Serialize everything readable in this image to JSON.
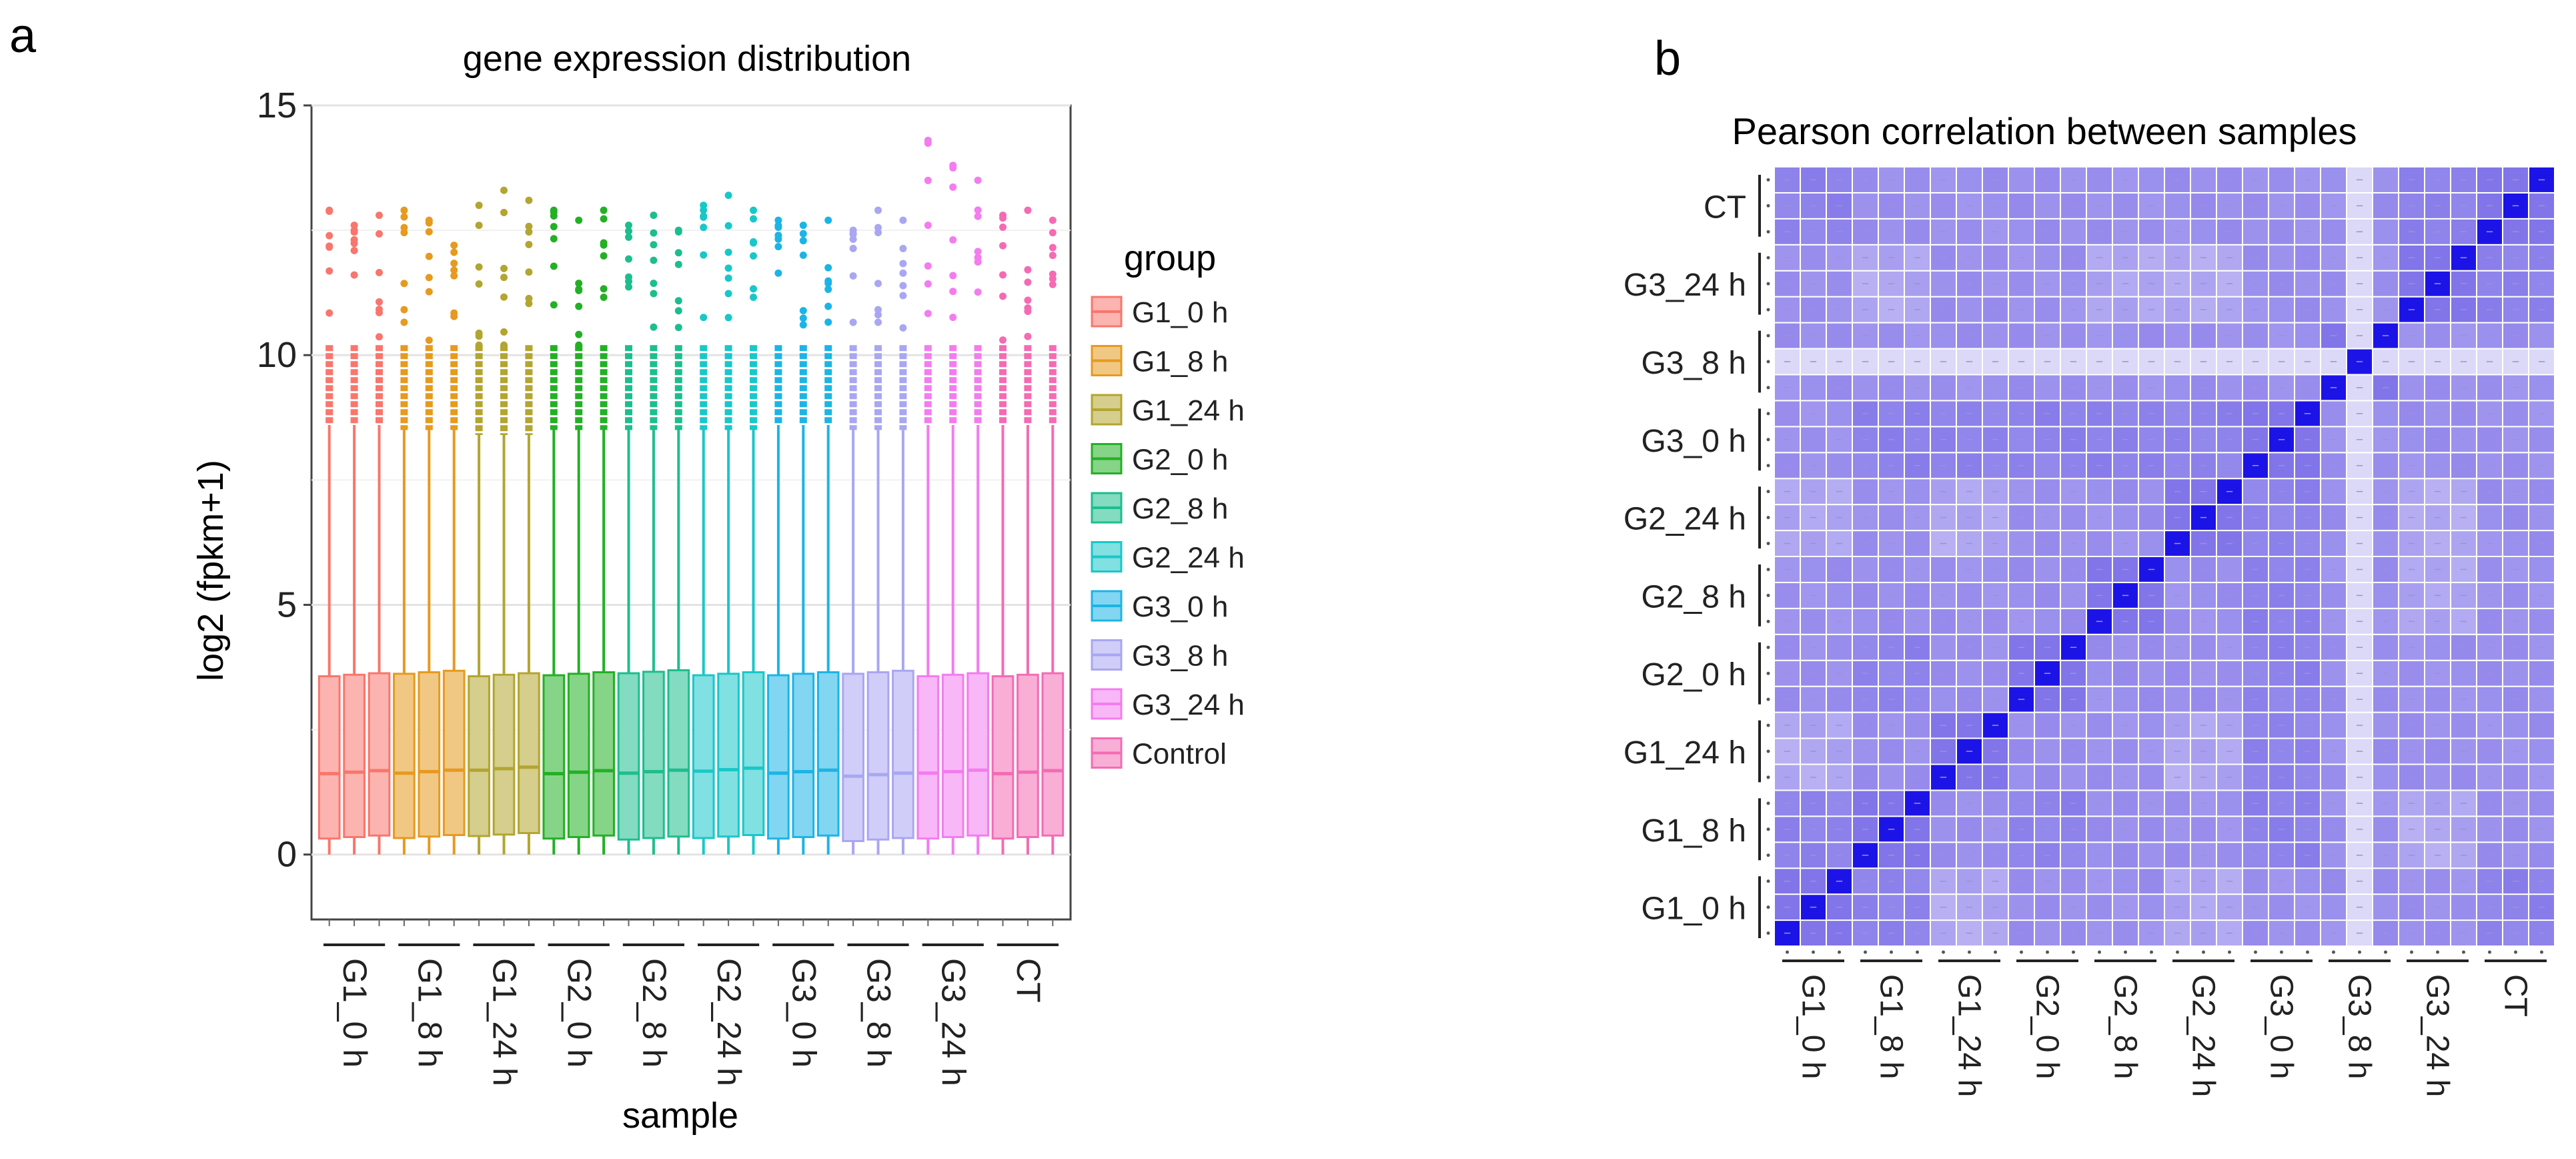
{
  "panel_a": {
    "letter": "a"
  },
  "panel_b": {
    "letter": "b"
  },
  "chart_data": [
    {
      "type": "box",
      "title": "gene expression  distribution",
      "xlabel": "sample",
      "ylabel": "log2 (fpkm+1)",
      "ylim": [
        -1.3,
        15.0
      ],
      "yticks": [
        0,
        5,
        10,
        15
      ],
      "grid": true,
      "legend_title": "group",
      "legend_position": "right",
      "groups": [
        {
          "name": "G1_0 h",
          "label": "G1_0 h",
          "color": "#F8766D",
          "median": 1.65,
          "q1": 0.35,
          "q3": 3.6,
          "whisker_low": 0.0,
          "whisker_high": 8.6,
          "outlier_max": [
            12.9,
            12.6,
            12.8
          ]
        },
        {
          "name": "G1_8 h",
          "label": "G1_8 h",
          "color": "#E69A1F",
          "median": 1.66,
          "q1": 0.36,
          "q3": 3.65,
          "whisker_low": 0.0,
          "whisker_high": 8.5,
          "outlier_max": [
            12.9,
            12.7,
            12.2
          ]
        },
        {
          "name": "G1_24 h",
          "label": "G1_24 h",
          "color": "#B3A530",
          "median": 1.72,
          "q1": 0.4,
          "q3": 3.6,
          "whisker_low": 0.0,
          "whisker_high": 8.4,
          "outlier_max": [
            13.0,
            13.3,
            13.1
          ]
        },
        {
          "name": "G2_0 h",
          "label": "G2_0 h",
          "color": "#23B025",
          "median": 1.65,
          "q1": 0.35,
          "q3": 3.62,
          "whisker_low": 0.0,
          "whisker_high": 8.5,
          "outlier_max": [
            12.9,
            12.7,
            12.9
          ]
        },
        {
          "name": "G2_8 h",
          "label": "G2_8 h",
          "color": "#1DBE8D",
          "median": 1.66,
          "q1": 0.33,
          "q3": 3.66,
          "whisker_low": 0.0,
          "whisker_high": 8.5,
          "outlier_max": [
            12.6,
            12.8,
            12.5
          ]
        },
        {
          "name": "G2_24 h",
          "label": "G2_24 h",
          "color": "#19C7C9",
          "median": 1.7,
          "q1": 0.36,
          "q3": 3.62,
          "whisker_low": 0.0,
          "whisker_high": 8.5,
          "outlier_max": [
            13.0,
            13.2,
            12.9
          ]
        },
        {
          "name": "G3_0 h",
          "label": "G3_0 h",
          "color": "#1CB4E6",
          "median": 1.66,
          "q1": 0.35,
          "q3": 3.62,
          "whisker_low": 0.0,
          "whisker_high": 8.6,
          "outlier_max": [
            12.7,
            12.6,
            12.7
          ]
        },
        {
          "name": "G3_8 h",
          "label": "G3_8 h",
          "color": "#A9A6F2",
          "median": 1.6,
          "q1": 0.3,
          "q3": 3.65,
          "whisker_low": 0.0,
          "whisker_high": 8.5,
          "outlier_max": [
            12.5,
            12.9,
            12.7
          ]
        },
        {
          "name": "G3_24 h",
          "label": "G3_24 h",
          "color": "#F37CEE",
          "median": 1.66,
          "q1": 0.35,
          "q3": 3.6,
          "whisker_low": 0.0,
          "whisker_high": 8.6,
          "outlier_max": [
            14.3,
            13.8,
            13.5
          ]
        },
        {
          "name": "Control",
          "label": "CT",
          "color": "#F46BB4",
          "median": 1.65,
          "q1": 0.35,
          "q3": 3.6,
          "whisker_low": 0.0,
          "whisker_high": 8.6,
          "outlier_max": [
            12.8,
            12.9,
            12.7
          ]
        }
      ],
      "replicates_per_group": 3
    },
    {
      "type": "heatmap",
      "title": "Pearson correlation between  samples",
      "x_labels": [
        "G1_0 h",
        "G1_8 h",
        "G1_24 h",
        "G2_0 h",
        "G2_8 h",
        "G2_24 h",
        "G3_0 h",
        "G3_8 h",
        "G3_24 h",
        "CT"
      ],
      "y_labels": [
        "G1_0 h",
        "G1_8 h",
        "G1_24 h",
        "G2_0 h",
        "G2_8 h",
        "G2_24 h",
        "G3_0 h",
        "G3_8 h",
        "G3_24 h",
        "CT"
      ],
      "replicates_per_group": 3,
      "color_low": "#EDEBFA",
      "color_high": "#1C14E6",
      "values": {
        "diagonal": 1.0,
        "within_group": 0.98,
        "high_pairs": 0.96,
        "default": 0.94,
        "light_pairs": 0.91,
        "outlier_sample": 0.86
      },
      "high_blocks": [
        [
          "G1_8 h",
          "G2_0 h"
        ],
        [
          "G1_8 h",
          "G3_0 h"
        ],
        [
          "G1_24 h",
          "G3_0 h"
        ],
        [
          "G2_8 h",
          "G3_0 h"
        ],
        [
          "G2_24 h",
          "G3_0 h"
        ],
        [
          "G2_0 h",
          "G3_0 h"
        ],
        [
          "G1_0 h",
          "G1_8 h"
        ],
        [
          "G3_24 h",
          "CT"
        ],
        [
          "G1_0 h",
          "CT"
        ]
      ],
      "light_blocks": [
        [
          "G1_0 h",
          "G1_24 h"
        ],
        [
          "G1_24 h",
          "G2_24 h"
        ],
        [
          "G1_0 h",
          "G2_24 h"
        ],
        [
          "G2_24 h",
          "G3_24 h"
        ],
        [
          "G1_8 h",
          "G3_24 h"
        ],
        [
          "G2_8 h",
          "G3_24 h"
        ]
      ],
      "outlier_sample_index": 22
    }
  ]
}
